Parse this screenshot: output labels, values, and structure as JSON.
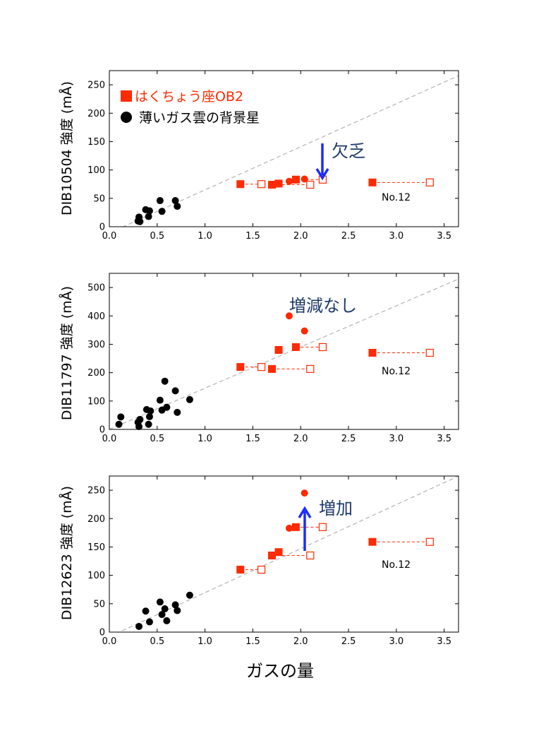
{
  "chart_data": [
    {
      "type": "scatter",
      "ylabel": "DIB10504 強度 (mÅ)",
      "xlim": [
        0,
        3.65
      ],
      "ylim": [
        0,
        275
      ],
      "xticks": [
        "0.0",
        "0.5",
        "1.0",
        "1.5",
        "2.0",
        "2.5",
        "3.0",
        "3.5"
      ],
      "yticks": [
        "0",
        "50",
        "100",
        "150",
        "200",
        "250"
      ],
      "legend": [
        {
          "label": "はくちょう座OB2",
          "marker": "square",
          "color": "#ff2a00"
        },
        {
          "label": "薄いガス雲の背景星",
          "marker": "circle",
          "color": "#000000"
        }
      ],
      "legend_position": "top-left",
      "trend_line": {
        "x": [
          0,
          3.65
        ],
        "y": [
          -11,
          266
        ]
      },
      "series": [
        {
          "marker": "circle",
          "color": "#000000",
          "points": [
            [
              0.3,
              10
            ],
            [
              0.31,
              17
            ],
            [
              0.32,
              9
            ],
            [
              0.38,
              30
            ],
            [
              0.41,
              18
            ],
            [
              0.42,
              28
            ],
            [
              0.53,
              46
            ],
            [
              0.55,
              27
            ],
            [
              0.69,
              46
            ],
            [
              0.71,
              36
            ]
          ]
        },
        {
          "marker": "circle",
          "color": "#ff2a00",
          "points": [
            [
              1.88,
              80
            ],
            [
              2.04,
              84
            ]
          ]
        },
        {
          "marker": "square",
          "color": "#ff2a00",
          "points": [
            [
              1.37,
              75
            ],
            [
              1.7,
              74
            ],
            [
              1.77,
              76
            ],
            [
              1.95,
              83
            ],
            [
              2.75,
              78
            ]
          ]
        },
        {
          "marker": "open-square",
          "color": "#ff2a00",
          "points": [
            [
              1.59,
              75
            ],
            [
              2.1,
              74
            ],
            [
              2.23,
              83
            ],
            [
              3.35,
              78
            ]
          ]
        }
      ],
      "pairs": [
        [
          1.37,
          1.59,
          75
        ],
        [
          1.7,
          2.1,
          74
        ],
        [
          1.95,
          2.23,
          83
        ],
        [
          2.75,
          3.35,
          78
        ]
      ],
      "annotations": [
        {
          "text": "欠乏",
          "arrow": "down"
        },
        {
          "text": "No.12"
        }
      ]
    },
    {
      "type": "scatter",
      "ylabel": "DIB11797 強度 (mÅ)",
      "xlim": [
        0,
        3.65
      ],
      "ylim": [
        0,
        550
      ],
      "xticks": [
        "0.0",
        "0.5",
        "1.0",
        "1.5",
        "2.0",
        "2.5",
        "3.0",
        "3.5"
      ],
      "yticks": [
        "0",
        "100",
        "200",
        "300",
        "400",
        "500"
      ],
      "trend_line": {
        "x": [
          0,
          3.65
        ],
        "y": [
          0,
          530
        ]
      },
      "series": [
        {
          "marker": "circle",
          "color": "#000000",
          "points": [
            [
              0.1,
              18
            ],
            [
              0.12,
              44
            ],
            [
              0.3,
              25
            ],
            [
              0.31,
              10
            ],
            [
              0.32,
              35
            ],
            [
              0.39,
              70
            ],
            [
              0.41,
              18
            ],
            [
              0.42,
              45
            ],
            [
              0.43,
              65
            ],
            [
              0.53,
              103
            ],
            [
              0.55,
              68
            ],
            [
              0.58,
              170
            ],
            [
              0.6,
              78
            ],
            [
              0.69,
              136
            ],
            [
              0.71,
              60
            ],
            [
              0.84,
              105
            ]
          ]
        },
        {
          "marker": "circle",
          "color": "#ff2a00",
          "points": [
            [
              1.88,
              400
            ],
            [
              2.04,
              347
            ]
          ]
        },
        {
          "marker": "square",
          "color": "#ff2a00",
          "points": [
            [
              1.37,
              220
            ],
            [
              1.7,
              213
            ],
            [
              1.77,
              280
            ],
            [
              1.95,
              290
            ],
            [
              2.75,
              270
            ]
          ]
        },
        {
          "marker": "open-square",
          "color": "#ff2a00",
          "points": [
            [
              1.59,
              220
            ],
            [
              2.1,
              213
            ],
            [
              2.23,
              290
            ],
            [
              3.35,
              270
            ]
          ]
        }
      ],
      "pairs": [
        [
          1.37,
          1.59,
          220
        ],
        [
          1.7,
          2.1,
          213
        ],
        [
          1.95,
          2.23,
          290
        ],
        [
          2.75,
          3.35,
          270
        ]
      ],
      "annotations": [
        {
          "text": "増減なし"
        },
        {
          "text": "No.12"
        }
      ]
    },
    {
      "type": "scatter",
      "ylabel": "DIB12623 強度 (mÅ)",
      "xlabel": "ガスの量",
      "xlim": [
        0,
        3.65
      ],
      "ylim": [
        0,
        275
      ],
      "xticks": [
        "0.0",
        "0.5",
        "1.0",
        "1.5",
        "2.0",
        "2.5",
        "3.0",
        "3.5"
      ],
      "yticks": [
        "0",
        "50",
        "100",
        "150",
        "200",
        "250"
      ],
      "trend_line": {
        "x": [
          0,
          3.65
        ],
        "y": [
          -8,
          275
        ]
      },
      "series": [
        {
          "marker": "circle",
          "color": "#000000",
          "points": [
            [
              0.31,
              10
            ],
            [
              0.38,
              37
            ],
            [
              0.42,
              18
            ],
            [
              0.53,
              53
            ],
            [
              0.55,
              31
            ],
            [
              0.58,
              41
            ],
            [
              0.6,
              20
            ],
            [
              0.69,
              48
            ],
            [
              0.71,
              38
            ],
            [
              0.84,
              65
            ]
          ]
        },
        {
          "marker": "circle",
          "color": "#ff2a00",
          "points": [
            [
              1.88,
              183
            ],
            [
              2.04,
              245
            ]
          ]
        },
        {
          "marker": "square",
          "color": "#ff2a00",
          "points": [
            [
              1.37,
              110
            ],
            [
              1.7,
              135
            ],
            [
              1.77,
              141
            ],
            [
              1.95,
              185
            ],
            [
              2.75,
              159
            ]
          ]
        },
        {
          "marker": "open-square",
          "color": "#ff2a00",
          "points": [
            [
              1.59,
              110
            ],
            [
              2.1,
              135
            ],
            [
              2.23,
              185
            ],
            [
              3.35,
              159
            ]
          ]
        }
      ],
      "pairs": [
        [
          1.37,
          1.59,
          110
        ],
        [
          1.7,
          2.1,
          135
        ],
        [
          1.95,
          2.23,
          185
        ],
        [
          2.75,
          3.35,
          159
        ]
      ],
      "annotations": [
        {
          "text": "増加",
          "arrow": "up"
        },
        {
          "text": "No.12"
        }
      ]
    }
  ]
}
